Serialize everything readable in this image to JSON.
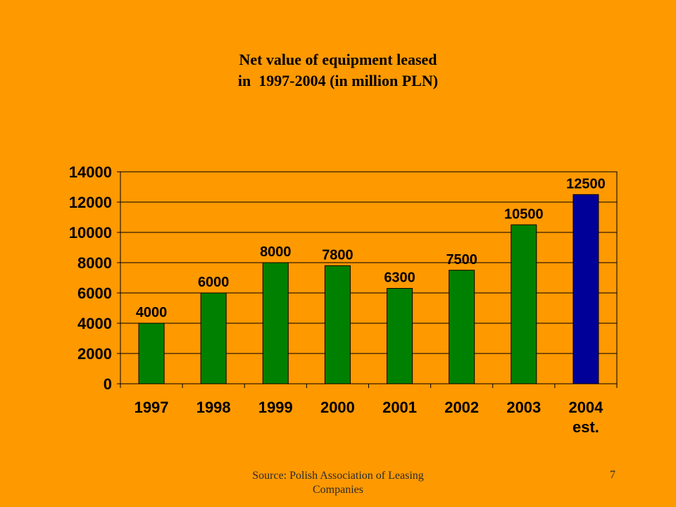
{
  "slide": {
    "title_line1": "Net value of equipment leased",
    "title_line2": "in  1997-2004 (in million PLN)",
    "footer_source": "Source: Polish Association of Leasing Companies",
    "page_number": "7"
  },
  "chart_data": {
    "type": "bar",
    "categories": [
      "1997",
      "1998",
      "1999",
      "2000",
      "2001",
      "2002",
      "2003",
      "2004"
    ],
    "category_sublabels": [
      "",
      "",
      "",
      "",
      "",
      "",
      "",
      "est."
    ],
    "values": [
      4000,
      6000,
      8000,
      7800,
      6300,
      7500,
      10500,
      12500
    ],
    "data_labels": [
      "4000",
      "6000",
      "8000",
      "7800",
      "6300",
      "7500",
      "10500",
      "12500"
    ],
    "bar_colors": [
      "#008000",
      "#008000",
      "#008000",
      "#008000",
      "#008000",
      "#008000",
      "#008000",
      "#000099"
    ],
    "ylim": [
      0,
      14000
    ],
    "yticks": [
      0,
      2000,
      4000,
      6000,
      8000,
      10000,
      12000,
      14000
    ],
    "ytick_labels": [
      "0",
      "2000",
      "4000",
      "6000",
      "8000",
      "10000",
      "12000",
      "14000"
    ],
    "grid": true,
    "legend": false
  }
}
